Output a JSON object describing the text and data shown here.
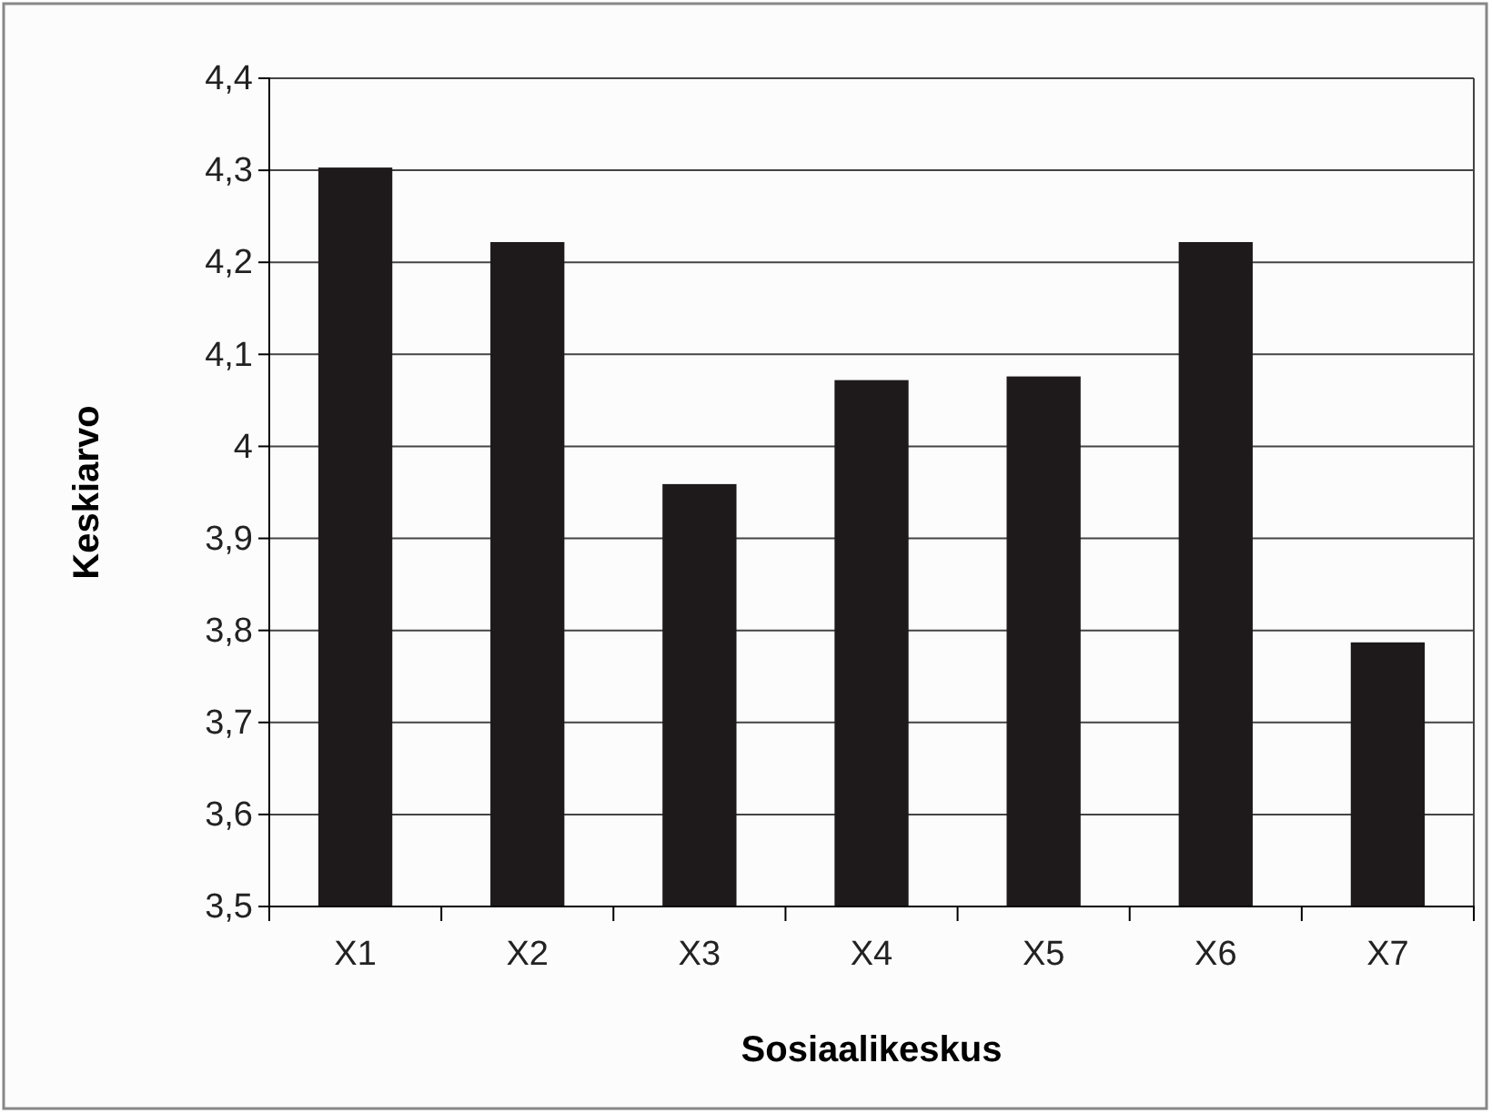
{
  "chart_data": {
    "type": "bar",
    "xlabel": "Sosiaalikeskus",
    "ylabel": "Keskiarvo",
    "categories": [
      "X1",
      "X2",
      "X3",
      "X4",
      "X5",
      "X6",
      "X7"
    ],
    "values": [
      4.303,
      4.222,
      3.959,
      4.072,
      4.076,
      4.222,
      3.787
    ],
    "color": "#1e1a1b",
    "ylim": [
      3.5,
      4.4
    ],
    "yticks": [
      {
        "value": 3.5,
        "label": "3,5"
      },
      {
        "value": 3.6,
        "label": "3,6"
      },
      {
        "value": 3.7,
        "label": "3,7"
      },
      {
        "value": 3.8,
        "label": "3,8"
      },
      {
        "value": 3.9,
        "label": "3,9"
      },
      4,
      {
        "value": 4.1,
        "label": "4,1"
      },
      {
        "value": 4.2,
        "label": "4,2"
      },
      {
        "value": 4.3,
        "label": "4,3"
      },
      {
        "value": 4.4,
        "label": "4,4"
      }
    ],
    "grid": "y"
  }
}
